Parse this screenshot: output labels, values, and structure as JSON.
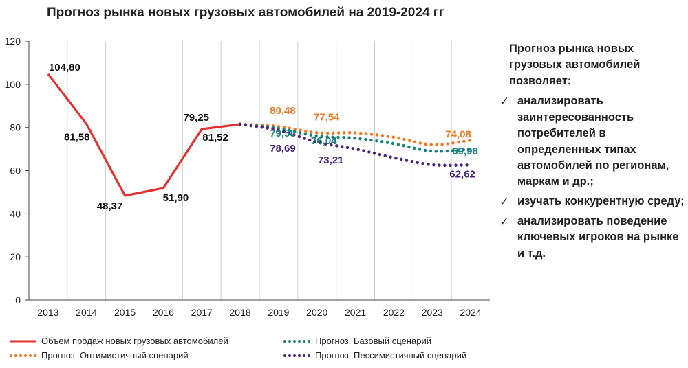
{
  "chart_data": {
    "type": "line",
    "title": "Прогноз рынка новых грузовых автомобилей на 2019-2024 гг",
    "categories": [
      "2013",
      "2014",
      "2015",
      "2016",
      "2017",
      "2018",
      "2019",
      "2020",
      "2021",
      "2022",
      "2023",
      "2024"
    ],
    "y_ticks": [
      "0",
      "20",
      "40",
      "60",
      "80",
      "100",
      "120"
    ],
    "ylim": [
      0,
      120
    ],
    "grid": "vertical",
    "series": [
      {
        "name": "Объем продаж новых грузовых автомобилей",
        "style": "solid",
        "color": "#e53030",
        "points": [
          [
            0,
            104.8
          ],
          [
            1,
            81.58
          ],
          [
            2,
            48.37
          ],
          [
            3,
            51.9
          ],
          [
            4,
            79.25
          ],
          [
            5,
            81.52
          ]
        ]
      },
      {
        "name": "Прогноз: Оптимистичный сценарий",
        "style": "dotted",
        "color": "#f07820",
        "points": [
          [
            5,
            81.52
          ],
          [
            6,
            80.48
          ],
          [
            7,
            77.54
          ],
          [
            8,
            77.5
          ],
          [
            9,
            75.5
          ],
          [
            10,
            72.0
          ],
          [
            11,
            74.08
          ]
        ]
      },
      {
        "name": "Прогноз: Базовый сценарий",
        "style": "dotted",
        "color": "#1a8080",
        "points": [
          [
            5,
            81.52
          ],
          [
            6,
            79.58
          ],
          [
            7,
            76.04
          ],
          [
            8,
            75.0
          ],
          [
            9,
            72.5
          ],
          [
            10,
            69.0
          ],
          [
            11,
            69.98
          ]
        ]
      },
      {
        "name": "Прогноз: Пессимистичный сценарий",
        "style": "dotted",
        "color": "#4a237a",
        "points": [
          [
            5,
            81.52
          ],
          [
            6,
            78.69
          ],
          [
            7,
            73.21
          ],
          [
            8,
            70.0
          ],
          [
            9,
            66.0
          ],
          [
            10,
            62.7
          ],
          [
            11,
            62.62
          ]
        ]
      }
    ],
    "data_labels": [
      {
        "text": "104,80",
        "x": 0,
        "y": 104.8,
        "color": "#111111"
      },
      {
        "text": "81,58",
        "x": 1,
        "y": 81.58,
        "color": "#111111"
      },
      {
        "text": "48,37",
        "x": 2,
        "y": 48.37,
        "color": "#111111"
      },
      {
        "text": "51,90",
        "x": 3,
        "y": 51.9,
        "color": "#111111"
      },
      {
        "text": "79,25",
        "x": 4,
        "y": 79.25,
        "color": "#111111"
      },
      {
        "text": "81,52",
        "x": 5,
        "y": 81.52,
        "color": "#111111"
      },
      {
        "text": "80,48",
        "x": 6,
        "y": 80.48,
        "color": "#f07820"
      },
      {
        "text": "79,58",
        "x": 6,
        "y": 79.58,
        "color": "#1a8080"
      },
      {
        "text": "78,69",
        "x": 6,
        "y": 78.69,
        "color": "#4a237a"
      },
      {
        "text": "77,54",
        "x": 7,
        "y": 77.54,
        "color": "#f07820"
      },
      {
        "text": "76,04",
        "x": 7,
        "y": 76.04,
        "color": "#1a8080"
      },
      {
        "text": "73,21",
        "x": 7,
        "y": 73.21,
        "color": "#4a237a"
      },
      {
        "text": "74,08",
        "x": 11,
        "y": 74.08,
        "color": "#f07820"
      },
      {
        "text": "69,98",
        "x": 11,
        "y": 69.98,
        "color": "#1a8080"
      },
      {
        "text": "62,62",
        "x": 11,
        "y": 62.62,
        "color": "#4a237a"
      }
    ],
    "legend": [
      {
        "label": "Объем продаж новых грузовых автомобилей",
        "style": "solid",
        "color": "#e53030"
      },
      {
        "label": "Прогноз: Оптимистичный сценарий",
        "style": "dotted",
        "color": "#f07820"
      },
      {
        "label": "Прогноз: Базовый сценарий",
        "style": "dotted",
        "color": "#1a8080"
      },
      {
        "label": "Прогноз: Пессимистичный сценарий",
        "style": "dotted",
        "color": "#4a237a"
      }
    ]
  },
  "side_panel": {
    "heading": "Прогноз рынка новых грузовых автомобилей позволяет:",
    "check_glyph": "✓",
    "bullets": [
      "анализировать заинтересованность потребителей в определенных типах автомобилей по регионам, маркам и др.;",
      "изучать конкурентную среду;",
      "анализировать поведение ключевых игроков на рынке и т.д."
    ]
  }
}
